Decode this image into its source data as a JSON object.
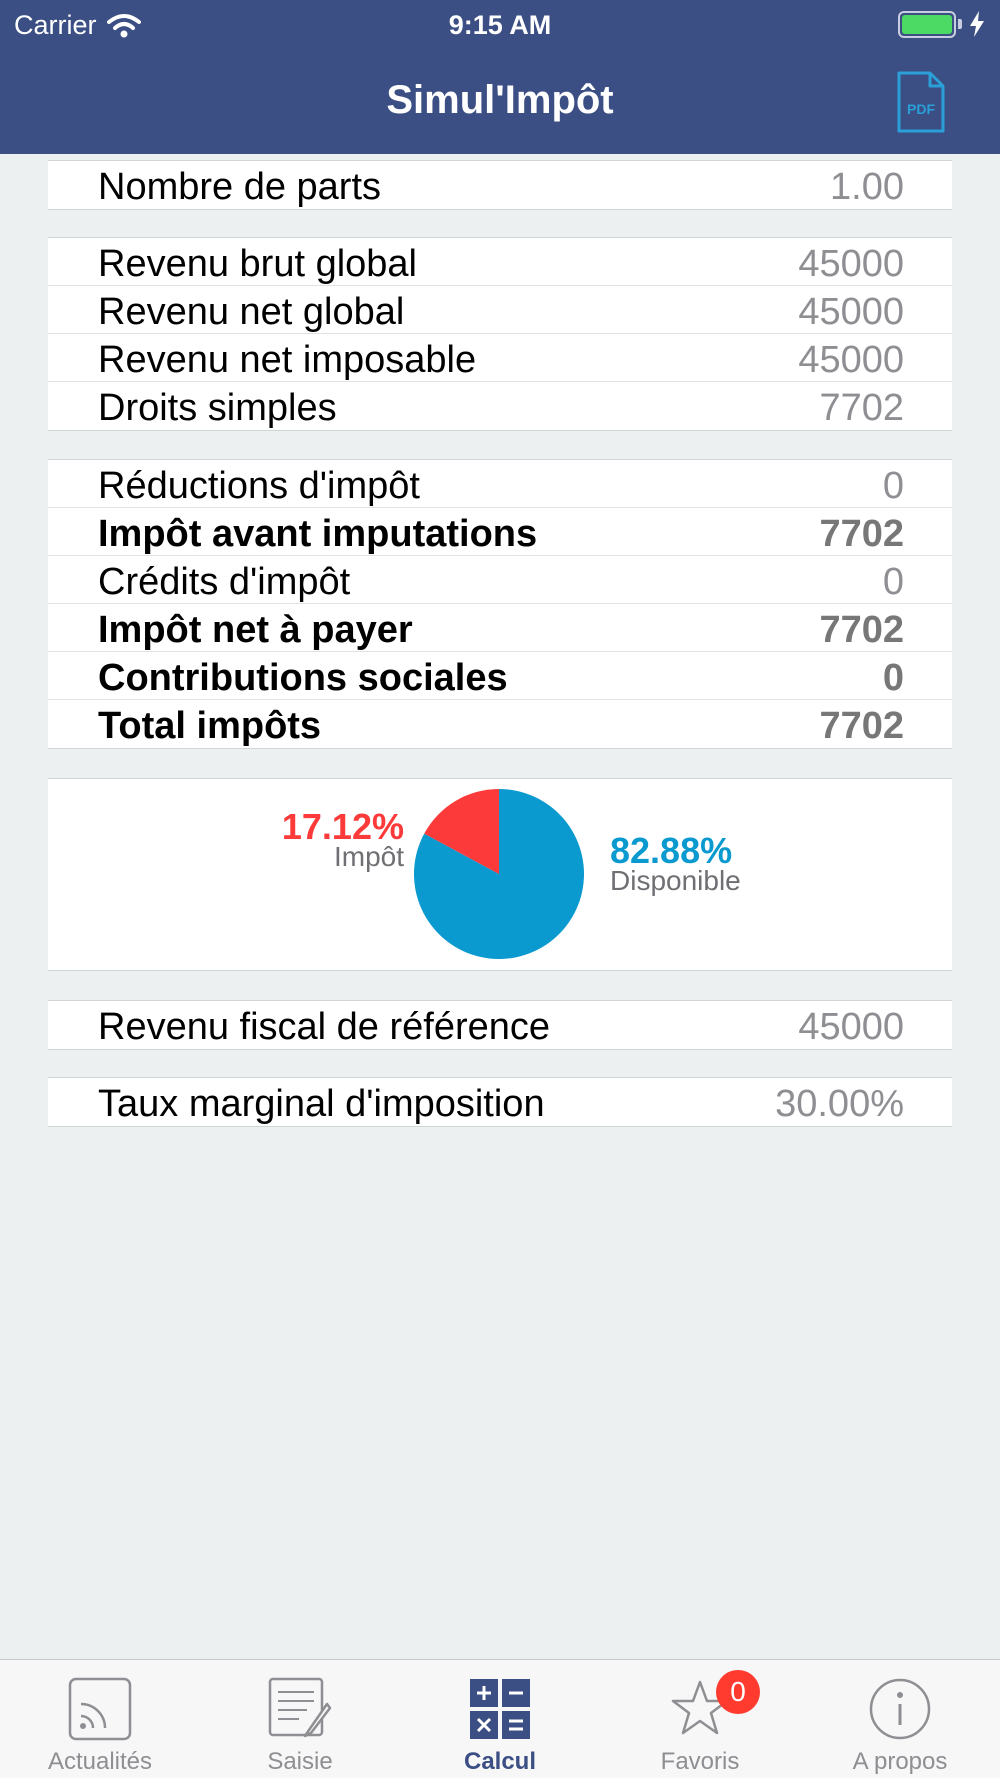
{
  "status_bar": {
    "carrier": "Carrier",
    "time": "9:15 AM"
  },
  "header": {
    "title": "Simul'Impôt",
    "pdf_label": "PDF"
  },
  "groups": [
    {
      "rows": [
        {
          "label": "Nombre de parts",
          "value": "1.00",
          "bold": false
        }
      ]
    },
    {
      "rows": [
        {
          "label": "Revenu brut global",
          "value": "45000",
          "bold": false
        },
        {
          "label": "Revenu net global",
          "value": "45000",
          "bold": false
        },
        {
          "label": "Revenu net imposable",
          "value": "45000",
          "bold": false
        },
        {
          "label": "Droits simples",
          "value": "7702",
          "bold": false
        }
      ]
    },
    {
      "rows": [
        {
          "label": "Réductions d'impôt",
          "value": "0",
          "bold": false
        },
        {
          "label": "Impôt avant imputations",
          "value": "7702",
          "bold": true
        },
        {
          "label": "Crédits d'impôt",
          "value": "0",
          "bold": false
        },
        {
          "label": "Impôt net à payer",
          "value": "7702",
          "bold": true
        },
        {
          "label": "Contributions sociales",
          "value": "0",
          "bold": true
        },
        {
          "label": "Total impôts",
          "value": "7702",
          "bold": true
        }
      ]
    },
    {
      "rows": [
        {
          "label": "Revenu fiscal de référence",
          "value": "45000",
          "bold": false
        }
      ]
    },
    {
      "rows": [
        {
          "label": "Taux marginal d'imposition",
          "value": "30.00%",
          "bold": false
        }
      ]
    }
  ],
  "pie": {
    "impot_pct": "17.12%",
    "impot_label": "Impôt",
    "impot_fraction": 0.1712,
    "impot_color": "#fc3a3a",
    "disponible_pct": "82.88%",
    "disponible_label": "Disponible",
    "disponible_color": "#0a9ad0"
  },
  "tabbar": {
    "tabs": [
      {
        "label": "Actualités",
        "icon": "rss-icon"
      },
      {
        "label": "Saisie",
        "icon": "form-edit-icon"
      },
      {
        "label": "Calcul",
        "icon": "calculator-icon"
      },
      {
        "label": "Favoris",
        "icon": "star-icon",
        "badge": "0"
      },
      {
        "label": "A propos",
        "icon": "info-icon"
      }
    ],
    "active": "Calcul"
  }
}
